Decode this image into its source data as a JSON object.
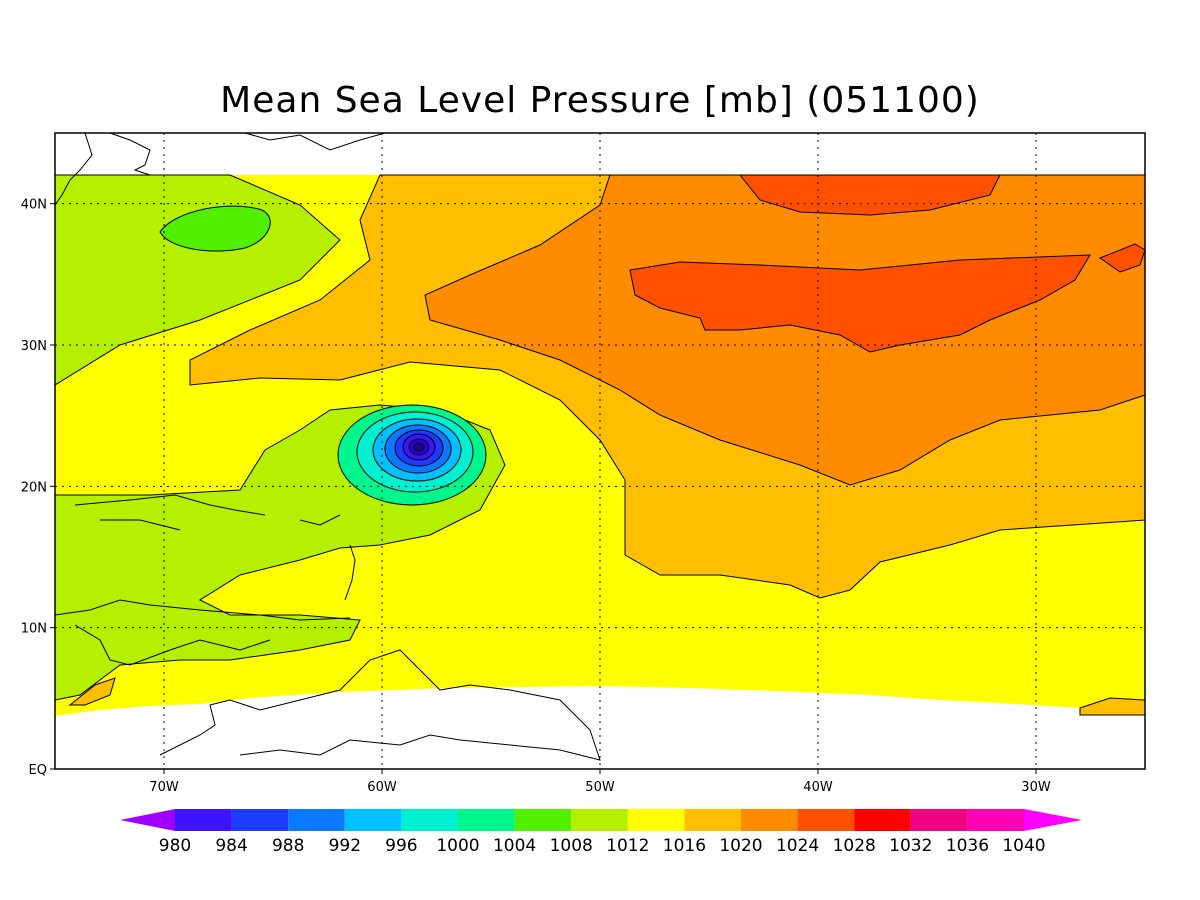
{
  "title": "Mean Sea Level Pressure [mb] (051100)",
  "map": {
    "lon_range": [
      -75,
      -25
    ],
    "lat_range": [
      0,
      45
    ],
    "x_ticks": [
      {
        "lon": -70,
        "label": "70W"
      },
      {
        "lon": -60,
        "label": "60W"
      },
      {
        "lon": -50,
        "label": "50W"
      },
      {
        "lon": -40,
        "label": "40W"
      },
      {
        "lon": -30,
        "label": "30W"
      }
    ],
    "y_ticks": [
      {
        "lat": 0,
        "label": "EQ"
      },
      {
        "lat": 10,
        "label": "10N"
      },
      {
        "lat": 20,
        "label": "20N"
      },
      {
        "lat": 30,
        "label": "30N"
      },
      {
        "lat": 40,
        "label": "40N"
      }
    ],
    "grid": "dotted",
    "low_pressure_center": {
      "lon": -58.7,
      "lat": 22.5
    }
  },
  "colorbar": {
    "labels": [
      "980",
      "984",
      "988",
      "992",
      "996",
      "1000",
      "1004",
      "1008",
      "1012",
      "1016",
      "1020",
      "1024",
      "1028",
      "1032",
      "1036",
      "1040"
    ],
    "colors": [
      "#a000ff",
      "#3c14ff",
      "#1e3cff",
      "#0a78ff",
      "#00c0ff",
      "#00f0d0",
      "#00f58c",
      "#50f000",
      "#b4f000",
      "#ffff00",
      "#ffbe00",
      "#ff8c00",
      "#ff5000",
      "#ff0000",
      "#f00082",
      "#ff00b4",
      "#ff00ff"
    ]
  }
}
